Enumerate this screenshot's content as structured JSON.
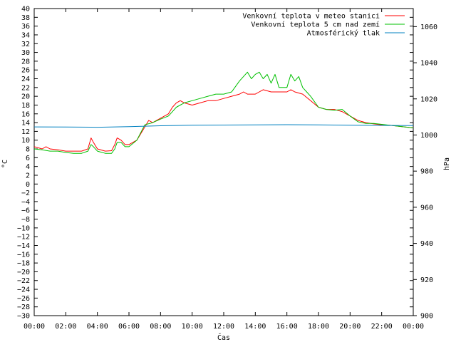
{
  "chart_data": {
    "type": "line",
    "xlabel": "Čas",
    "ylabel_left": "°C",
    "ylabel_right": "hPa",
    "x_ticks": [
      "00:00",
      "02:00",
      "04:00",
      "06:00",
      "08:00",
      "10:00",
      "12:00",
      "14:00",
      "16:00",
      "18:00",
      "20:00",
      "22:00",
      "00:00"
    ],
    "x_range_hours": [
      0,
      24
    ],
    "ylim_left": [
      -30,
      40
    ],
    "ylim_right": [
      900,
      1070
    ],
    "y_ticks_left": [
      -30,
      -28,
      -26,
      -24,
      -22,
      -20,
      -18,
      -16,
      -14,
      -12,
      -10,
      -8,
      -6,
      -4,
      -2,
      0,
      2,
      4,
      6,
      8,
      10,
      12,
      14,
      16,
      18,
      20,
      22,
      24,
      26,
      28,
      30,
      32,
      34,
      36,
      38,
      40
    ],
    "y_ticks_right": [
      900,
      920,
      940,
      960,
      980,
      1000,
      1020,
      1040,
      1060
    ],
    "grid": false,
    "legend_position": "top-right",
    "series": [
      {
        "name": "Venkovní teplota v meteo stanici",
        "color": "#ff0000",
        "axis": "left",
        "x": [
          0,
          0.5,
          0.75,
          1,
          1.5,
          2,
          2.5,
          3,
          3.4,
          3.6,
          3.75,
          4,
          4.5,
          4.9,
          5.1,
          5.25,
          5.5,
          5.75,
          6,
          6.5,
          7,
          7.25,
          7.5,
          8,
          8.5,
          8.75,
          9,
          9.25,
          9.5,
          10,
          10.5,
          11,
          11.5,
          12,
          12.5,
          13,
          13.25,
          13.5,
          14,
          14.25,
          14.5,
          15,
          15.5,
          16,
          16.25,
          16.5,
          17,
          17.5,
          18,
          18.5,
          19,
          19.5,
          20,
          20.5,
          21,
          21.5,
          22,
          22.5,
          23,
          23.5,
          24
        ],
        "y": [
          8.5,
          8,
          8.5,
          8,
          7.8,
          7.5,
          7.5,
          7.5,
          8,
          10.5,
          9.5,
          8,
          7.5,
          7.6,
          9,
          10.5,
          10,
          9,
          9,
          10,
          13,
          14.5,
          14,
          15,
          16,
          17.5,
          18.5,
          19,
          18.5,
          18,
          18.5,
          19,
          19,
          19.5,
          20,
          20.5,
          21,
          20.5,
          20.5,
          21,
          21.5,
          21,
          21,
          21,
          21.5,
          21,
          20.5,
          19,
          17.5,
          17,
          17,
          16.5,
          15.5,
          14.5,
          14,
          13.7,
          13.5,
          13.4,
          13.2,
          13,
          12.8
        ]
      },
      {
        "name": "Venkovní teplota 5 cm nad zemí",
        "color": "#00c000",
        "axis": "left",
        "x": [
          0,
          0.5,
          1,
          1.5,
          2,
          2.5,
          3,
          3.4,
          3.6,
          3.75,
          4,
          4.5,
          4.9,
          5.1,
          5.25,
          5.5,
          5.75,
          6,
          6.5,
          7,
          7.5,
          8,
          8.5,
          8.75,
          9,
          9.5,
          10,
          10.5,
          11,
          11.5,
          12,
          12.5,
          13,
          13.25,
          13.5,
          13.75,
          14,
          14.25,
          14.5,
          14.75,
          15,
          15.25,
          15.5,
          15.75,
          16,
          16.25,
          16.5,
          16.75,
          17,
          17.25,
          17.5,
          18,
          18.5,
          19,
          19.5,
          20,
          20.5,
          21,
          21.5,
          22,
          22.5,
          23,
          23.5,
          24
        ],
        "y": [
          8,
          7.8,
          7.5,
          7.5,
          7.2,
          7,
          7,
          7.5,
          9,
          8.5,
          7.5,
          7,
          7,
          8,
          9.5,
          9.5,
          8.5,
          8.5,
          10,
          13.5,
          14,
          14.8,
          15.5,
          16.5,
          17.5,
          18.5,
          19,
          19.5,
          20,
          20.5,
          20.5,
          21,
          23.5,
          24.5,
          25.5,
          24,
          25,
          25.5,
          24,
          25,
          23,
          25,
          22,
          22,
          22,
          25,
          23.5,
          24.5,
          22,
          21,
          20,
          17.5,
          17,
          16.8,
          17,
          15.5,
          14.2,
          13.8,
          13.8,
          13.6,
          13.4,
          13.2,
          13,
          12.8
        ]
      },
      {
        "name": "Atmosférický tlak",
        "color": "#0080c0",
        "axis": "right",
        "x": [
          0,
          2,
          4,
          6,
          8,
          10,
          12,
          14,
          16,
          18,
          20,
          22,
          24
        ],
        "y": [
          1004.5,
          1004.4,
          1004.3,
          1004.6,
          1005.1,
          1005.4,
          1005.5,
          1005.6,
          1005.7,
          1005.6,
          1005.4,
          1005.3,
          1005.2
        ]
      }
    ]
  }
}
